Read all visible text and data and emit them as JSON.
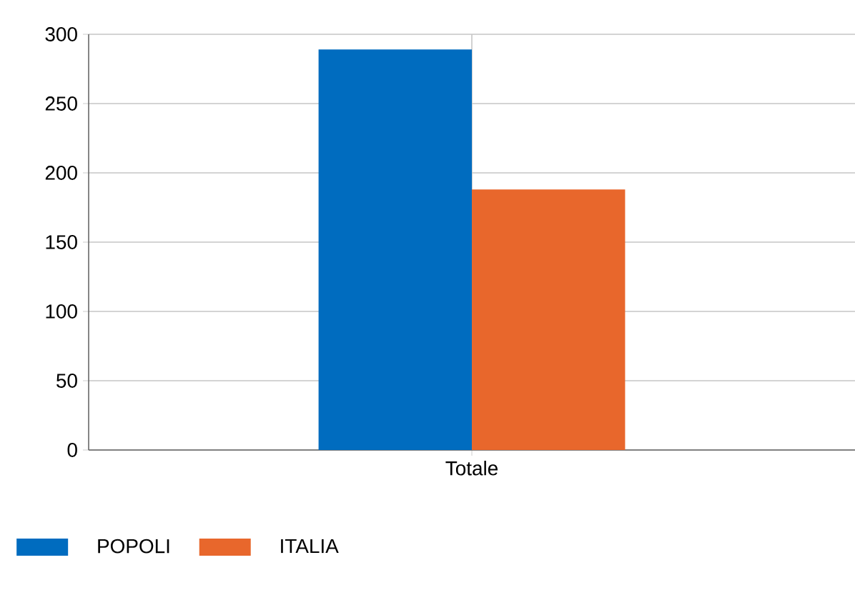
{
  "chart_data": {
    "type": "bar",
    "categories": [
      "Totale"
    ],
    "series": [
      {
        "name": "POPOLI",
        "color": "#006cbf",
        "values": [
          289
        ]
      },
      {
        "name": "ITALIA",
        "color": "#e8672c",
        "values": [
          188
        ]
      }
    ],
    "ylim": [
      0,
      300
    ],
    "yticks": [
      0,
      50,
      100,
      150,
      200,
      250,
      300
    ],
    "grid": true,
    "legend": "bottom"
  }
}
